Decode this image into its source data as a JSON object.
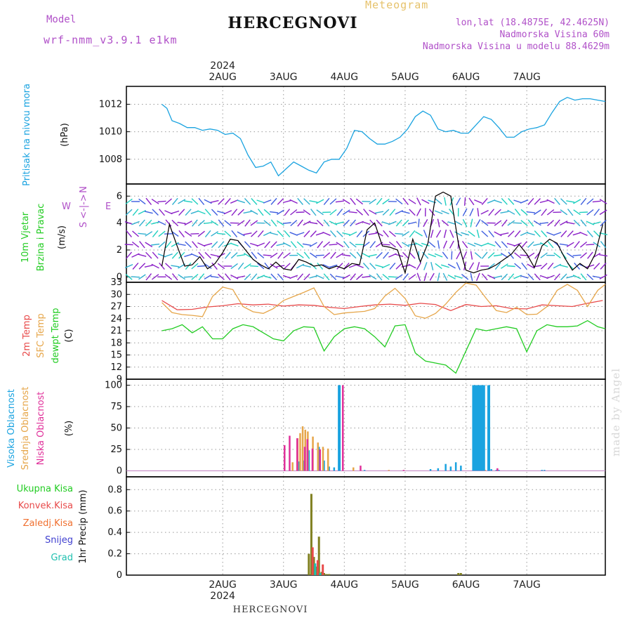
{
  "header": {
    "title": "HERCEGNOVI",
    "meteogram_label": "Meteogram",
    "model_label": "Model",
    "model_name": "wrf-nmm_v3.9.1  e1km",
    "lonlat": "lon,lat (18.4875E, 42.4625N)",
    "elevation": "Nadmorska Visina 60m",
    "model_elevation": "Nadmorska Visina u modelu 88.4629m"
  },
  "footer": {
    "location": "HERCEGNOVI",
    "credit": "made by Angel"
  },
  "colors": {
    "pressure": "#1aa3e0",
    "wind_black": "#000000",
    "wind_red": "#e04040",
    "temp2m": "#e84a4a",
    "sfc_temp": "#e6a64a",
    "dewpoint": "#22cc22",
    "high_cloud": "#1aa3e0",
    "mid_cloud": "#e6a64a",
    "low_cloud": "#e0309a",
    "precip": "#808020",
    "grid": "#999999"
  },
  "chart_data": [
    {
      "type": "line",
      "panel": "pressure",
      "ylabel_lines": [
        "Pritisak na nivou mora",
        "(hPa)"
      ],
      "ylim": [
        1006.2,
        1013.3
      ],
      "yticks": [
        1008,
        1010,
        1012
      ],
      "x_ticks": [
        "2AUG",
        "3AUG",
        "4AUG",
        "5AUG",
        "6AUG",
        "7AUG"
      ],
      "x_year": "2024",
      "grid": true,
      "series": [
        {
          "x_hours": [
            0,
            2,
            4,
            7,
            10,
            13,
            16,
            19,
            22,
            25,
            28,
            31,
            34,
            37,
            40,
            43,
            46,
            49,
            52,
            55,
            58,
            61,
            64,
            67,
            70,
            73,
            76,
            79,
            82,
            85,
            88,
            91,
            94,
            97,
            100,
            103,
            106,
            109,
            112,
            115,
            118,
            121,
            124,
            127,
            130,
            133,
            136,
            139,
            142,
            145,
            148,
            151,
            154,
            157,
            160,
            163,
            166,
            169,
            172,
            175
          ],
          "values": [
            1012.0,
            1011.7,
            1010.8,
            1010.6,
            1010.3,
            1010.3,
            1010.1,
            1010.2,
            1010.1,
            1009.8,
            1009.9,
            1009.5,
            1008.3,
            1007.4,
            1007.5,
            1007.8,
            1006.8,
            1007.3,
            1007.8,
            1007.5,
            1007.2,
            1007.0,
            1007.8,
            1008.0,
            1008.0,
            1008.8,
            1010.1,
            1010.0,
            1009.5,
            1009.1,
            1009.1,
            1009.3,
            1009.6,
            1010.2,
            1011.1,
            1011.5,
            1011.2,
            1010.2,
            1010.0,
            1010.1,
            1009.9,
            1009.9,
            1010.5,
            1011.1,
            1010.9,
            1010.3,
            1009.6,
            1009.6,
            1010.0,
            1010.2,
            1010.3,
            1010.5,
            1011.4,
            1012.2,
            1012.5,
            1012.3,
            1012.4,
            1012.4,
            1012.3,
            1012.2
          ]
        }
      ]
    },
    {
      "type": "line",
      "panel": "wind",
      "ylabel_lines": [
        "10m Vjetar",
        "Brzina i Pravac",
        "(m/s)"
      ],
      "compass_lines": [
        "N",
        "<-|->",
        "W",
        "E",
        "S"
      ],
      "ylim": [
        -0.4,
        6.9
      ],
      "yticks": [
        0,
        2,
        4,
        6
      ],
      "grid": true,
      "series": [
        {
          "name": "speed",
          "x_hours": [
            0,
            3,
            6,
            9,
            12,
            15,
            18,
            21,
            24,
            27,
            30,
            33,
            36,
            39,
            42,
            45,
            48,
            51,
            54,
            57,
            60,
            63,
            66,
            69,
            72,
            75,
            78,
            81,
            84,
            87,
            90,
            93,
            96,
            99,
            102,
            105,
            108,
            111,
            114,
            117,
            120,
            123,
            126,
            129,
            132,
            135,
            138,
            141,
            144,
            147,
            150,
            153,
            156,
            159,
            162,
            165,
            168,
            171,
            174
          ],
          "values": [
            0.8,
            3.9,
            2.3,
            0.8,
            0.9,
            1.5,
            0.6,
            1.0,
            1.8,
            2.8,
            2.7,
            2.0,
            1.3,
            0.9,
            0.6,
            1.1,
            0.6,
            0.5,
            1.3,
            1.1,
            0.8,
            0.9,
            0.6,
            0.8,
            0.6,
            1.0,
            0.9,
            3.5,
            4.0,
            2.3,
            2.2,
            2.0,
            0.3,
            2.8,
            1.1,
            2.5,
            6.0,
            6.3,
            6.0,
            2.5,
            0.5,
            0.3,
            0.5,
            0.6,
            0.9,
            1.3,
            1.7,
            2.4,
            1.7,
            0.7,
            2.3,
            2.8,
            2.5,
            1.4,
            0.5,
            1.0,
            0.6,
            1.7,
            3.9
          ]
        }
      ]
    },
    {
      "type": "line",
      "panel": "temperature",
      "ylabel_lines": [
        "2m Temp",
        "SFC Temp",
        "dewpt Temp",
        "(C)"
      ],
      "ylim": [
        9,
        33
      ],
      "yticks": [
        9,
        12,
        15,
        18,
        21,
        24,
        27,
        30,
        33
      ],
      "grid": true,
      "series": [
        {
          "name": "2m Temp",
          "x_hours": [
            0,
            6,
            12,
            18,
            24,
            30,
            36,
            42,
            48,
            54,
            60,
            66,
            72,
            78,
            84,
            90,
            96,
            102,
            108,
            114,
            120,
            126,
            132,
            138,
            144,
            150,
            156,
            162,
            168,
            174
          ],
          "values": [
            28.5,
            26.2,
            26.3,
            26.9,
            27.2,
            27.7,
            27.4,
            27.6,
            27.1,
            27.4,
            27.3,
            26.8,
            26.5,
            27.0,
            27.4,
            27.6,
            27.3,
            27.8,
            27.5,
            26.0,
            27.5,
            27.0,
            27.2,
            26.5,
            26.4,
            27.4,
            27.2,
            27.0,
            27.8,
            28.5
          ]
        },
        {
          "name": "SFC Temp",
          "x_hours": [
            0,
            4,
            8,
            12,
            16,
            20,
            24,
            28,
            32,
            36,
            40,
            44,
            48,
            52,
            56,
            60,
            64,
            68,
            72,
            76,
            80,
            84,
            88,
            92,
            96,
            100,
            104,
            108,
            112,
            116,
            120,
            124,
            128,
            132,
            136,
            140,
            144,
            148,
            152,
            156,
            160,
            164,
            168,
            172,
            175
          ],
          "values": [
            28.0,
            25.5,
            25.0,
            24.8,
            24.5,
            29.5,
            31.8,
            31.2,
            27.0,
            25.7,
            25.3,
            26.5,
            28.5,
            29.5,
            30.5,
            31.6,
            27.0,
            25.0,
            25.4,
            25.6,
            25.8,
            26.5,
            29.6,
            31.5,
            29.0,
            24.7,
            24.1,
            25.3,
            27.6,
            30.5,
            32.8,
            32.3,
            29.0,
            26.0,
            25.5,
            26.8,
            25.0,
            25.1,
            27.0,
            31.0,
            32.5,
            31.0,
            27.0,
            31.0,
            32.5
          ]
        },
        {
          "name": "dewpt Temp",
          "x_hours": [
            0,
            4,
            8,
            12,
            16,
            20,
            24,
            28,
            32,
            36,
            40,
            44,
            48,
            52,
            56,
            60,
            64,
            68,
            72,
            76,
            80,
            84,
            88,
            92,
            96,
            100,
            104,
            108,
            112,
            116,
            120,
            124,
            128,
            132,
            136,
            140,
            144,
            148,
            152,
            156,
            160,
            164,
            168,
            172,
            175
          ],
          "values": [
            21.0,
            21.5,
            22.5,
            20.5,
            22.0,
            19.0,
            19.0,
            21.5,
            22.5,
            22.0,
            20.5,
            19.0,
            18.5,
            21.0,
            22.0,
            21.8,
            16.0,
            19.5,
            21.5,
            22.0,
            21.5,
            19.5,
            17.0,
            22.2,
            22.5,
            15.5,
            13.5,
            13.0,
            12.5,
            10.5,
            16.0,
            21.5,
            21.0,
            21.5,
            22.0,
            21.5,
            15.8,
            21.0,
            22.5,
            22.0,
            22.0,
            22.2,
            23.5,
            22.0,
            21.5
          ]
        }
      ]
    },
    {
      "type": "bar",
      "panel": "clouds",
      "ylabel_lines": [
        "Visoka Oblacnost",
        "Srednja Oblacnost",
        "Niska Oblacnost",
        "(%)"
      ],
      "ylim": [
        -7,
        107
      ],
      "yticks": [
        0,
        25,
        50,
        75,
        100
      ],
      "grid": true,
      "series": [
        {
          "name": "Visoka Oblacnost",
          "x_hours": [
            54,
            56,
            58,
            62,
            64,
            66,
            68,
            80,
            106,
            109,
            112,
            114,
            116,
            118,
            129,
            130,
            132,
            133,
            150,
            151
          ],
          "values": [
            11,
            12,
            24,
            28,
            12,
            5,
            4,
            1,
            2,
            3,
            8,
            5,
            10,
            6,
            2,
            2,
            1,
            1,
            1,
            1
          ]
        },
        {
          "name": "Srednja Oblacnost",
          "x_hours": [
            52,
            54,
            55,
            56,
            57,
            58,
            60,
            62,
            64,
            66,
            76,
            90,
            124,
            128
          ],
          "values": [
            10,
            38,
            44,
            52,
            48,
            46,
            40,
            33,
            28,
            26,
            4,
            1,
            1,
            1
          ]
        },
        {
          "name": "Niska Oblacnost",
          "x_hours": [
            48,
            50,
            53,
            56,
            57,
            59,
            62,
            71,
            78,
            95,
            126,
            132
          ],
          "values": [
            30,
            41,
            38,
            28,
            37,
            26,
            25,
            100,
            6,
            1,
            3,
            3
          ]
        },
        {
          "name": "Visoka Oblacnost",
          "x_hours": [
            70,
            123,
            124,
            125,
            126,
            127,
            129
          ],
          "values": [
            100,
            100,
            100,
            100,
            100,
            100,
            100
          ]
        }
      ]
    },
    {
      "type": "bar",
      "panel": "precip",
      "ylabel_lines": [
        "Ukupna Kisa",
        "Konvek.Kisa",
        "Zaledj.Kisa",
        "Snijeg",
        "Grad",
        "1hr Precip (mm)"
      ],
      "ylim": [
        0,
        0.92
      ],
      "yticks": [
        0,
        0.2,
        0.4,
        0.6,
        0.8
      ],
      "grid": true,
      "series": [
        {
          "name": "Ukupna Kisa",
          "x_hours": [
            58,
            59,
            60,
            61,
            62,
            63,
            64,
            65,
            66
          ],
          "values": [
            0.2,
            0.76,
            0.17,
            0.08,
            0.36,
            0.03,
            0.02,
            0.01,
            0.01
          ]
        },
        {
          "name": "Konvek.Kisa",
          "x_hours": [
            59.5,
            61.5,
            63.5
          ],
          "values": [
            0.26,
            0.14,
            0.1
          ]
        },
        {
          "name": "Grad",
          "x_hours": [
            60.5,
            62.5
          ],
          "values": [
            0.11,
            0.02
          ]
        },
        {
          "name": "Ukupna Kisa",
          "x_hours": [
            117,
            118
          ],
          "values": [
            0.02,
            0.02
          ]
        }
      ]
    }
  ]
}
